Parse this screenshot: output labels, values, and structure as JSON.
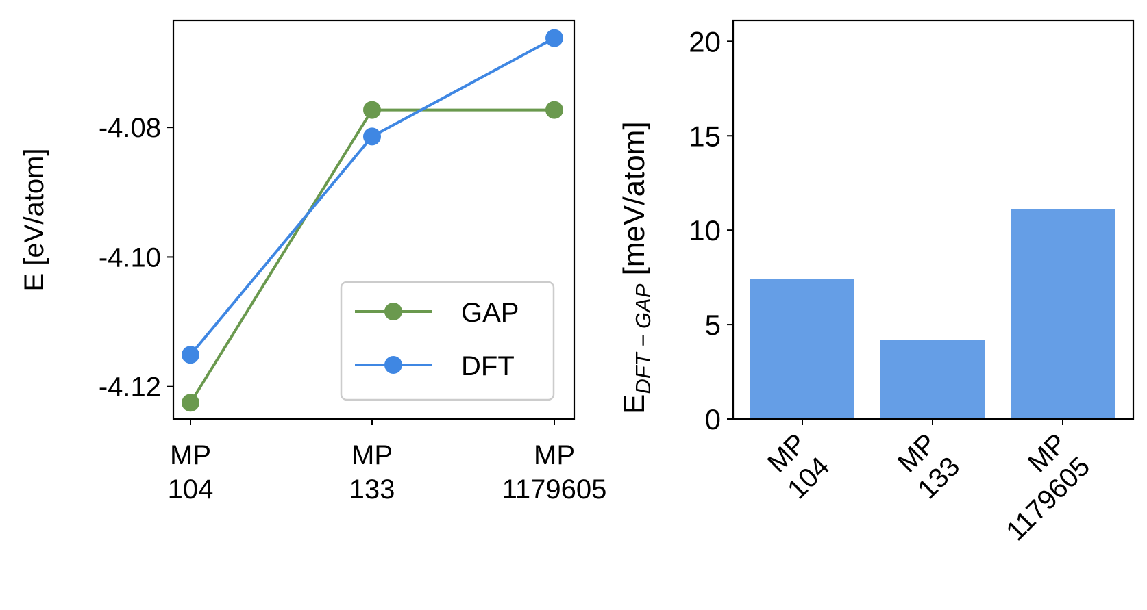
{
  "chart_data": [
    {
      "type": "line",
      "categories": [
        [
          "MP",
          "104"
        ],
        [
          "MP",
          "133"
        ],
        [
          "MP",
          "1179605"
        ]
      ],
      "series": [
        {
          "name": "GAP",
          "values": [
            -4.1225,
            -4.0773,
            -4.0773
          ],
          "color": "#6a994e"
        },
        {
          "name": "DFT",
          "values": [
            -4.1151,
            -4.0814,
            -4.0662
          ],
          "color": "#3f87e3"
        }
      ],
      "ylabel": "E [eV/atom]",
      "ylim": [
        -4.125,
        -4.0635
      ],
      "yticks": [
        -4.12,
        -4.1,
        -4.08
      ],
      "ytick_labels": [
        "-4.12",
        "-4.10",
        "-4.08"
      ],
      "legend": {
        "position": "bottom-right",
        "entries": [
          "GAP",
          "DFT"
        ]
      }
    },
    {
      "type": "bar",
      "categories": [
        [
          "MP",
          "104"
        ],
        [
          "MP",
          "133"
        ],
        [
          "MP",
          "1179605"
        ]
      ],
      "values": [
        7.4,
        4.2,
        11.1
      ],
      "color": "#659ee6",
      "ylabel_main": "E",
      "ylabel_sub": "DFT − GAP",
      "ylabel_unit": " [meV/atom]",
      "ylim": [
        0,
        21.1
      ],
      "yticks": [
        0,
        5,
        10,
        15,
        20
      ],
      "ytick_labels": [
        "0",
        "5",
        "10",
        "15",
        "20"
      ]
    }
  ]
}
